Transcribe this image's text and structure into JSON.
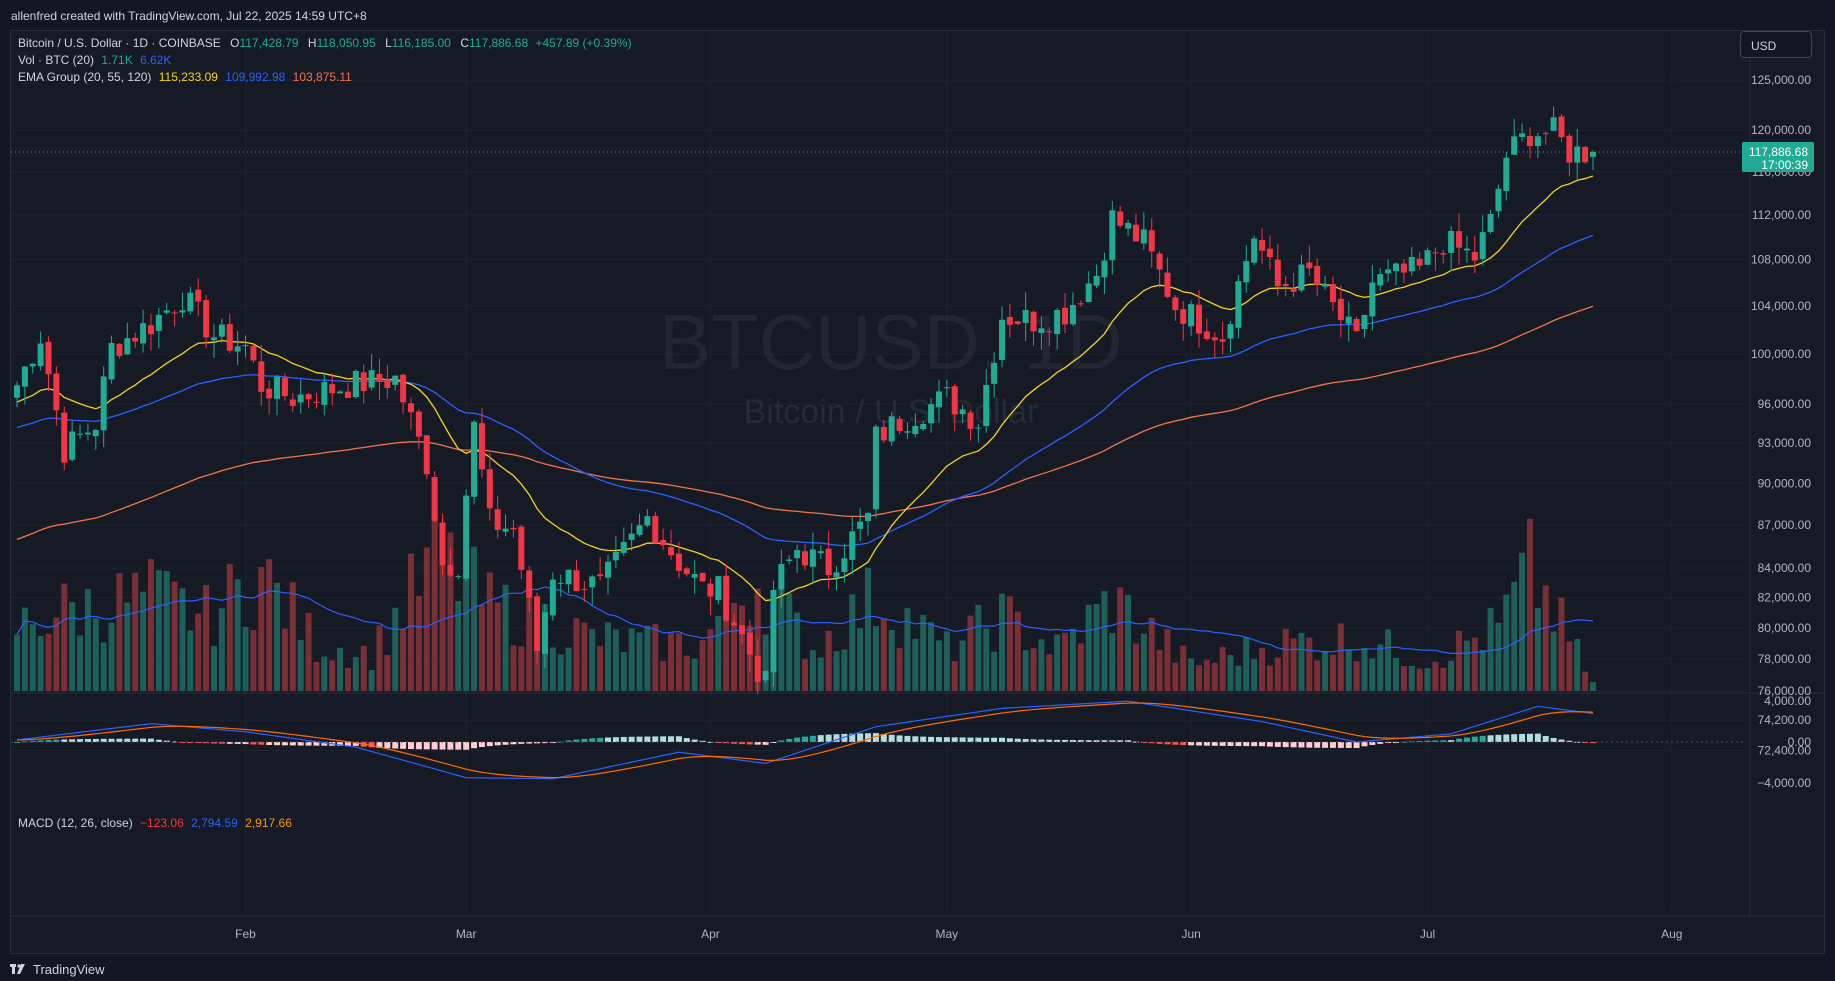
{
  "header": {
    "caption": "allenfred created with TradingView.com, Jul 22, 2025 14:59 UTC+8"
  },
  "legend": {
    "title": "Bitcoin / U.S. Dollar · 1D · COINBASE",
    "o_label": "O",
    "o": "117,428.79",
    "h_label": "H",
    "h": "118,050.95",
    "l_label": "L",
    "l": "116,185.00",
    "c_label": "C",
    "c": "117,886.68",
    "change": "+457.89 (+0.39%)",
    "vol_label": "Vol · BTC (20)",
    "vol_v1": "1.71K",
    "vol_v2": "6.62K",
    "ema_label": "EMA Group (20, 55, 120)",
    "ema20": "115,233.09",
    "ema55": "109,992.98",
    "ema120": "103,875.11",
    "macd_label": "MACD (12, 26, close)",
    "macd_hist": "−123.06",
    "macd_line": "2,794.59",
    "macd_signal": "2,917.66"
  },
  "currency": "USD",
  "watermark": {
    "symbol": "BTCUSD, 1D",
    "name": "Bitcoin / U.S. Dollar"
  },
  "last_price": {
    "price": "117,886.68",
    "countdown": "17:00:39"
  },
  "footer": {
    "brand": "TradingView"
  },
  "colors": {
    "up": "#22ab94",
    "down": "#f23645",
    "vol_up": "#1f5f5a",
    "vol_down": "#7a2f36",
    "ema20": "#f7d125",
    "ema55": "#2962ff",
    "ema120": "#f2734e",
    "vol_ma": "#2962ff",
    "macd": "#2962ff",
    "signal": "#ff6d00",
    "grid": "#1f2330",
    "text": "#b2b5be"
  },
  "chart_data": [
    {
      "type": "candlestick",
      "title": "Bitcoin / U.S. Dollar · 1D · COINBASE",
      "x_range": [
        "2025-01-03",
        "2025-07-22"
      ],
      "x_tick_labels": [
        "Feb",
        "Mar",
        "Apr",
        "May",
        "Jun",
        "Jul",
        "Aug"
      ],
      "y_scale": "log",
      "y_tick_labels": [
        "72,400.00",
        "74,200.00",
        "76,000.00",
        "78,000.00",
        "80,000.00",
        "82,000.00",
        "84,000.00",
        "87,000.00",
        "90,000.00",
        "93,000.00",
        "96,000.00",
        "100,000.00",
        "104,000.00",
        "108,000.00",
        "112,000.00",
        "116,000.00",
        "120,000.00",
        "125,000.00"
      ],
      "ylim": [
        70500,
        128000
      ],
      "close_keypoints": [
        [
          "2025-01-03",
          97500
        ],
        [
          "2025-01-06",
          101500
        ],
        [
          "2025-01-09",
          92500
        ],
        [
          "2025-01-13",
          94500
        ],
        [
          "2025-01-15",
          100500
        ],
        [
          "2025-01-20",
          102500
        ],
        [
          "2025-01-24",
          104800
        ],
        [
          "2025-01-28",
          101500
        ],
        [
          "2025-02-01",
          100600
        ],
        [
          "2025-02-03",
          97500
        ],
        [
          "2025-02-07",
          96500
        ],
        [
          "2025-02-14",
          97500
        ],
        [
          "2025-02-20",
          98000
        ],
        [
          "2025-02-24",
          91500
        ],
        [
          "2025-02-26",
          84300
        ],
        [
          "2025-02-28",
          84400
        ],
        [
          "2025-03-02",
          94200
        ],
        [
          "2025-03-04",
          87200
        ],
        [
          "2025-03-07",
          86700
        ],
        [
          "2025-03-10",
          78600
        ],
        [
          "2025-03-12",
          83700
        ],
        [
          "2025-03-18",
          82700
        ],
        [
          "2025-03-20",
          84200
        ],
        [
          "2025-03-24",
          87500
        ],
        [
          "2025-03-28",
          84400
        ],
        [
          "2025-03-31",
          82600
        ],
        [
          "2025-04-02",
          82500
        ],
        [
          "2025-04-06",
          78400
        ],
        [
          "2025-04-08",
          76300
        ],
        [
          "2025-04-09",
          82600
        ],
        [
          "2025-04-12",
          85300
        ],
        [
          "2025-04-16",
          84000
        ],
        [
          "2025-04-21",
          87500
        ],
        [
          "2025-04-22",
          93400
        ],
        [
          "2025-04-25",
          94700
        ],
        [
          "2025-05-01",
          96500
        ],
        [
          "2025-05-05",
          94700
        ],
        [
          "2025-05-08",
          103200
        ],
        [
          "2025-05-12",
          102800
        ],
        [
          "2025-05-16",
          103500
        ],
        [
          "2025-05-20",
          106800
        ],
        [
          "2025-05-22",
          111700
        ],
        [
          "2025-05-26",
          109500
        ],
        [
          "2025-05-30",
          104000
        ],
        [
          "2025-06-05",
          101500
        ],
        [
          "2025-06-09",
          110200
        ],
        [
          "2025-06-12",
          105600
        ],
        [
          "2025-06-16",
          106800
        ],
        [
          "2025-06-18",
          104800
        ],
        [
          "2025-06-20",
          102900
        ],
        [
          "2025-06-22",
          100900
        ],
        [
          "2025-06-24",
          106000
        ],
        [
          "2025-06-30",
          107100
        ],
        [
          "2025-07-03",
          109600
        ],
        [
          "2025-07-07",
          108200
        ],
        [
          "2025-07-09",
          111300
        ],
        [
          "2025-07-11",
          117500
        ],
        [
          "2025-07-14",
          119800
        ],
        [
          "2025-07-17",
          119800
        ],
        [
          "2025-07-19",
          117900
        ],
        [
          "2025-07-22",
          117886.68
        ]
      ],
      "ema_series": [
        {
          "name": "EMA 20",
          "value_last": 115233.09
        },
        {
          "name": "EMA 55",
          "value_last": 109992.98
        },
        {
          "name": "EMA 120",
          "value_last": 103875.11
        }
      ]
    },
    {
      "type": "bar",
      "title": "Vol · BTC (20)",
      "description_values": {
        "last_volume": "1.71K",
        "volume_ma": "6.62K"
      },
      "volume_keypoints_k": [
        [
          "2025-01-03",
          12
        ],
        [
          "2025-01-08",
          15
        ],
        [
          "2025-01-13",
          16
        ],
        [
          "2025-01-20",
          18
        ],
        [
          "2025-01-27",
          14
        ],
        [
          "2025-02-03",
          22
        ],
        [
          "2025-02-10",
          9
        ],
        [
          "2025-02-17",
          7
        ],
        [
          "2025-02-25",
          25
        ],
        [
          "2025-02-28",
          22
        ],
        [
          "2025-03-04",
          16
        ],
        [
          "2025-03-10",
          14
        ],
        [
          "2025-03-17",
          10
        ],
        [
          "2025-03-24",
          9
        ],
        [
          "2025-03-31",
          9
        ],
        [
          "2025-04-03",
          16
        ],
        [
          "2025-04-07",
          21
        ],
        [
          "2025-04-14",
          8
        ],
        [
          "2025-04-22",
          18
        ],
        [
          "2025-05-01",
          8
        ],
        [
          "2025-05-08",
          14
        ],
        [
          "2025-05-15",
          8
        ],
        [
          "2025-05-22",
          17
        ],
        [
          "2025-06-01",
          5
        ],
        [
          "2025-06-12",
          9
        ],
        [
          "2025-06-22",
          10
        ],
        [
          "2025-07-01",
          6
        ],
        [
          "2025-07-10",
          12
        ],
        [
          "2025-07-14",
          23
        ],
        [
          "2025-07-22",
          1.71
        ]
      ]
    },
    {
      "type": "line",
      "title": "MACD (12, 26, close)",
      "series": [
        {
          "name": "Histogram",
          "value_last": -123.06
        },
        {
          "name": "MACD",
          "value_last": 2794.59
        },
        {
          "name": "Signal",
          "value_last": 2917.66
        }
      ],
      "y_tick_labels": [
        "4,000.00",
        "0.00",
        "−4,000.00"
      ],
      "ylim": [
        -5000,
        5000
      ],
      "macd_keypoints": [
        [
          "2025-01-03",
          200
        ],
        [
          "2025-01-20",
          1800
        ],
        [
          "2025-02-01",
          1000
        ],
        [
          "2025-02-15",
          -500
        ],
        [
          "2025-03-01",
          -3500
        ],
        [
          "2025-03-12",
          -3600
        ],
        [
          "2025-03-28",
          -1000
        ],
        [
          "2025-04-08",
          -2100
        ],
        [
          "2025-04-22",
          1500
        ],
        [
          "2025-05-08",
          3300
        ],
        [
          "2025-05-24",
          4000
        ],
        [
          "2025-06-10",
          2000
        ],
        [
          "2025-06-22",
          0
        ],
        [
          "2025-07-04",
          800
        ],
        [
          "2025-07-15",
          3500
        ],
        [
          "2025-07-22",
          2794.59
        ]
      ]
    }
  ]
}
